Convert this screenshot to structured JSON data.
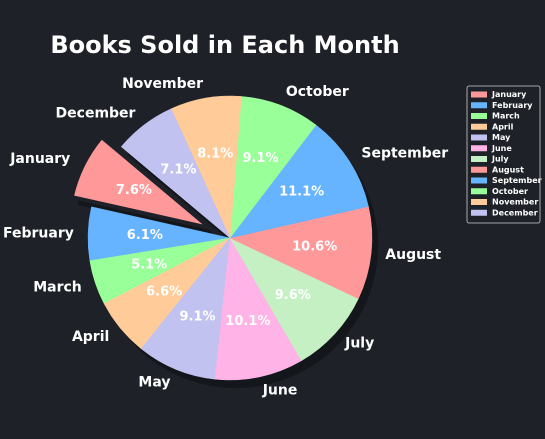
{
  "chart_data": {
    "type": "pie",
    "title": "Books Sold in Each Month",
    "categories": [
      "January",
      "February",
      "March",
      "April",
      "May",
      "June",
      "July",
      "August",
      "September",
      "October",
      "November",
      "December"
    ],
    "values": [
      7.6,
      6.1,
      5.1,
      6.6,
      9.1,
      10.1,
      9.6,
      10.6,
      11.1,
      9.1,
      8.1,
      7.1
    ],
    "percent_labels": [
      "7.6%",
      "6.1%",
      "5.1%",
      "6.6%",
      "9.1%",
      "10.1%",
      "9.6%",
      "10.6%",
      "11.1%",
      "9.1%",
      "8.1%",
      "7.1%"
    ],
    "colors": [
      "#ff9999",
      "#66b3ff",
      "#99ff99",
      "#ffcc99",
      "#c2c2f0",
      "#ffb3e6",
      "#c4f0c4",
      "#ff9999",
      "#66b3ff",
      "#99ff99",
      "#ffcc99",
      "#c2c2f0"
    ],
    "exploded": [
      "January"
    ],
    "start_angle_deg": 140,
    "direction": "counterclockwise",
    "shadow": true,
    "legend": "right",
    "background": "#1e2228"
  }
}
